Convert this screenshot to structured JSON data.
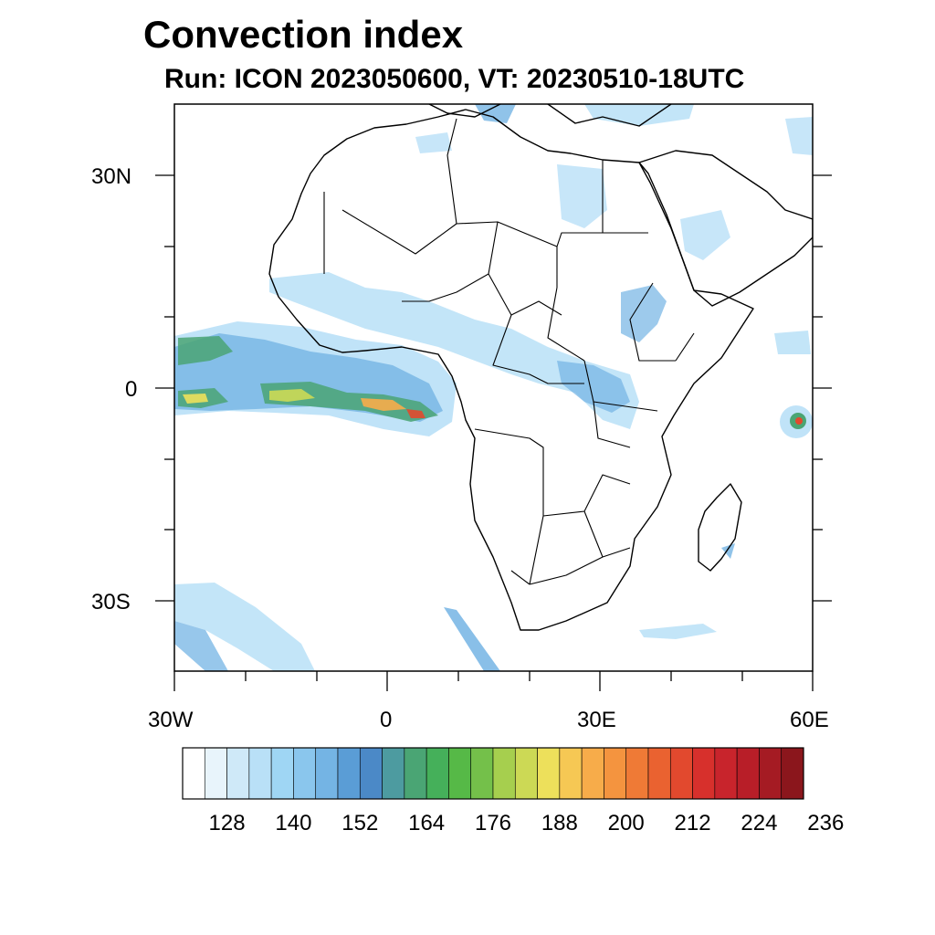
{
  "title": "Convection index",
  "subtitle": "Run: ICON 2023050600,  VT: 20230510-18UTC",
  "map": {
    "lon_range": [
      -30,
      60
    ],
    "lat_range": [
      -40,
      40
    ],
    "lat_labels": [
      "30N",
      "0",
      "30S"
    ],
    "lon_labels": [
      "30W",
      "0",
      "30E",
      "60E"
    ]
  },
  "colorbar": {
    "tick_labels": [
      "128",
      "140",
      "152",
      "164",
      "176",
      "188",
      "200",
      "212",
      "224",
      "236"
    ],
    "colors": [
      "#ffffff",
      "#e8f4fb",
      "#cfe9f8",
      "#b9e0f7",
      "#9fd6f4",
      "#8ac6ed",
      "#74b4e4",
      "#5a9dd6",
      "#4b89c7",
      "#4d9ba0",
      "#4aa574",
      "#45b05a",
      "#56b947",
      "#74c04a",
      "#a6cf4e",
      "#ccd955",
      "#ede05b",
      "#f6c854",
      "#f7ac4a",
      "#f4943f",
      "#ef7a36",
      "#ea6230",
      "#e2492e",
      "#d7302c",
      "#c8242c",
      "#b81e28",
      "#a51b23",
      "#8b161c"
    ]
  }
}
